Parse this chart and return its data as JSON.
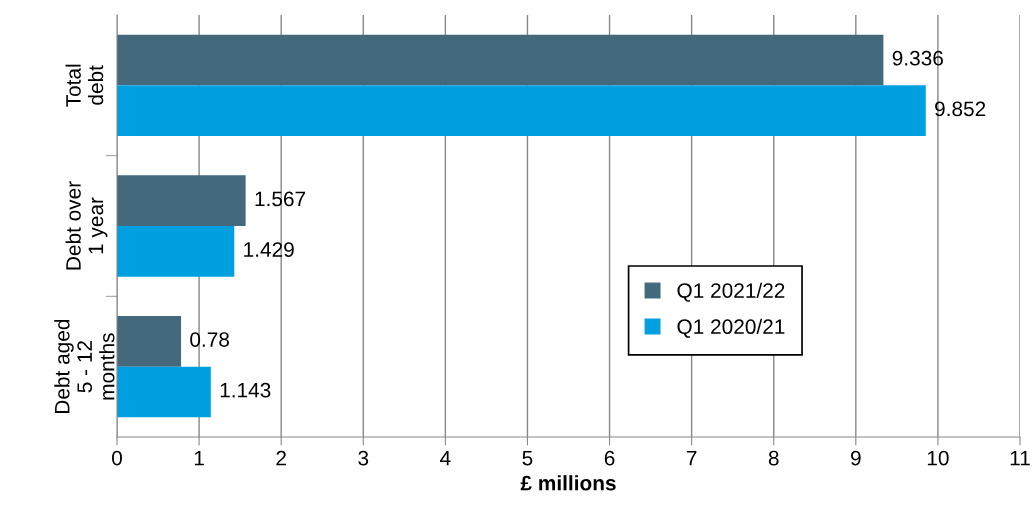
{
  "chart_data": {
    "type": "bar",
    "orientation": "horizontal",
    "xlabel": "£ millions",
    "categories": [
      "Total\ndebt",
      "Debt over\n1 year",
      "Debt aged\n5 - 12\nmonths"
    ],
    "series": [
      {
        "name": "Q1 2021/22",
        "color": "#44687c",
        "values": [
          9.336,
          1.567,
          0.78
        ]
      },
      {
        "name": "Q1 2020/21",
        "color": "#00a0e0",
        "values": [
          9.852,
          1.429,
          1.143
        ]
      }
    ],
    "xlim": [
      0,
      11
    ],
    "xticks": [
      0,
      1,
      2,
      3,
      4,
      5,
      6,
      7,
      8,
      9,
      10,
      11
    ],
    "grid": "x",
    "legend": "right",
    "data_labels": true
  }
}
